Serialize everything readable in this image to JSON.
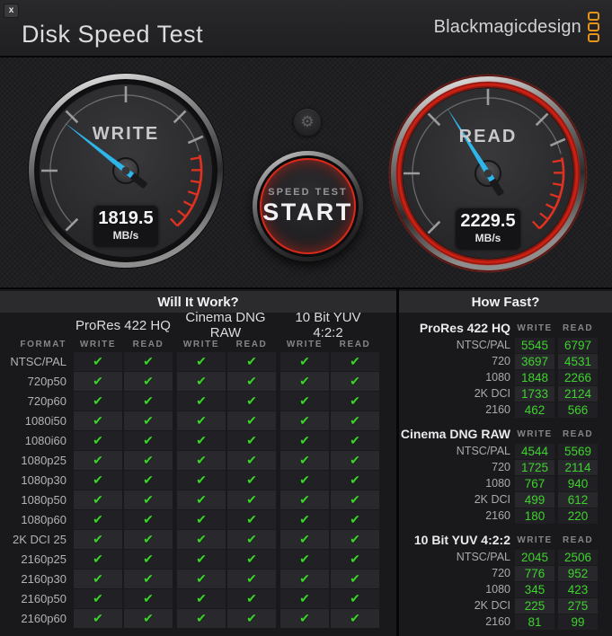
{
  "window": {
    "title": "Disk Speed Test",
    "close_label": "x",
    "logo_text": "Blackmagicdesign"
  },
  "icons": {
    "settings": "⚙",
    "check": "✔"
  },
  "colors": {
    "needle": "#2eb6ea",
    "check_green": "#3ed22c",
    "logo_orange": "#e8941a",
    "red_zone": "#d92f1d"
  },
  "gauges": {
    "write": {
      "label": "WRITE",
      "value": "1819.5",
      "unit": "MB/s",
      "needle_angle_deg": -52
    },
    "read": {
      "label": "READ",
      "value": "2229.5",
      "unit": "MB/s",
      "needle_angle_deg": -32
    }
  },
  "start_button": {
    "line1": "SPEED TEST",
    "line2": "START"
  },
  "will_it_work": {
    "title": "Will It Work?",
    "format_header": "FORMAT",
    "codec_groups": [
      "ProRes 422 HQ",
      "Cinema DNG RAW",
      "10 Bit YUV 4:2:2"
    ],
    "sub_headers": [
      "WRITE",
      "READ"
    ],
    "rows": [
      {
        "format": "NTSC/PAL",
        "checks": [
          true,
          true,
          true,
          true,
          true,
          true
        ]
      },
      {
        "format": "720p50",
        "checks": [
          true,
          true,
          true,
          true,
          true,
          true
        ]
      },
      {
        "format": "720p60",
        "checks": [
          true,
          true,
          true,
          true,
          true,
          true
        ]
      },
      {
        "format": "1080i50",
        "checks": [
          true,
          true,
          true,
          true,
          true,
          true
        ]
      },
      {
        "format": "1080i60",
        "checks": [
          true,
          true,
          true,
          true,
          true,
          true
        ]
      },
      {
        "format": "1080p25",
        "checks": [
          true,
          true,
          true,
          true,
          true,
          true
        ]
      },
      {
        "format": "1080p30",
        "checks": [
          true,
          true,
          true,
          true,
          true,
          true
        ]
      },
      {
        "format": "1080p50",
        "checks": [
          true,
          true,
          true,
          true,
          true,
          true
        ]
      },
      {
        "format": "1080p60",
        "checks": [
          true,
          true,
          true,
          true,
          true,
          true
        ]
      },
      {
        "format": "2K DCI 25",
        "checks": [
          true,
          true,
          true,
          true,
          true,
          true
        ]
      },
      {
        "format": "2160p25",
        "checks": [
          true,
          true,
          true,
          true,
          true,
          true
        ]
      },
      {
        "format": "2160p30",
        "checks": [
          true,
          true,
          true,
          true,
          true,
          true
        ]
      },
      {
        "format": "2160p50",
        "checks": [
          true,
          true,
          true,
          true,
          true,
          true
        ]
      },
      {
        "format": "2160p60",
        "checks": [
          true,
          true,
          true,
          true,
          true,
          true
        ]
      }
    ]
  },
  "how_fast": {
    "title": "How Fast?",
    "col_headers": [
      "WRITE",
      "READ"
    ],
    "sections": [
      {
        "codec": "ProRes 422 HQ",
        "rows": [
          {
            "label": "NTSC/PAL",
            "write": "5545",
            "read": "6797"
          },
          {
            "label": "720",
            "write": "3697",
            "read": "4531"
          },
          {
            "label": "1080",
            "write": "1848",
            "read": "2266"
          },
          {
            "label": "2K DCI",
            "write": "1733",
            "read": "2124"
          },
          {
            "label": "2160",
            "write": "462",
            "read": "566"
          }
        ]
      },
      {
        "codec": "Cinema DNG RAW",
        "rows": [
          {
            "label": "NTSC/PAL",
            "write": "4544",
            "read": "5569"
          },
          {
            "label": "720",
            "write": "1725",
            "read": "2114"
          },
          {
            "label": "1080",
            "write": "767",
            "read": "940"
          },
          {
            "label": "2K DCI",
            "write": "499",
            "read": "612"
          },
          {
            "label": "2160",
            "write": "180",
            "read": "220"
          }
        ]
      },
      {
        "codec": "10 Bit YUV 4:2:2",
        "rows": [
          {
            "label": "NTSC/PAL",
            "write": "2045",
            "read": "2506"
          },
          {
            "label": "720",
            "write": "776",
            "read": "952"
          },
          {
            "label": "1080",
            "write": "345",
            "read": "423"
          },
          {
            "label": "2K DCI",
            "write": "225",
            "read": "275"
          },
          {
            "label": "2160",
            "write": "81",
            "read": "99"
          }
        ]
      }
    ]
  }
}
